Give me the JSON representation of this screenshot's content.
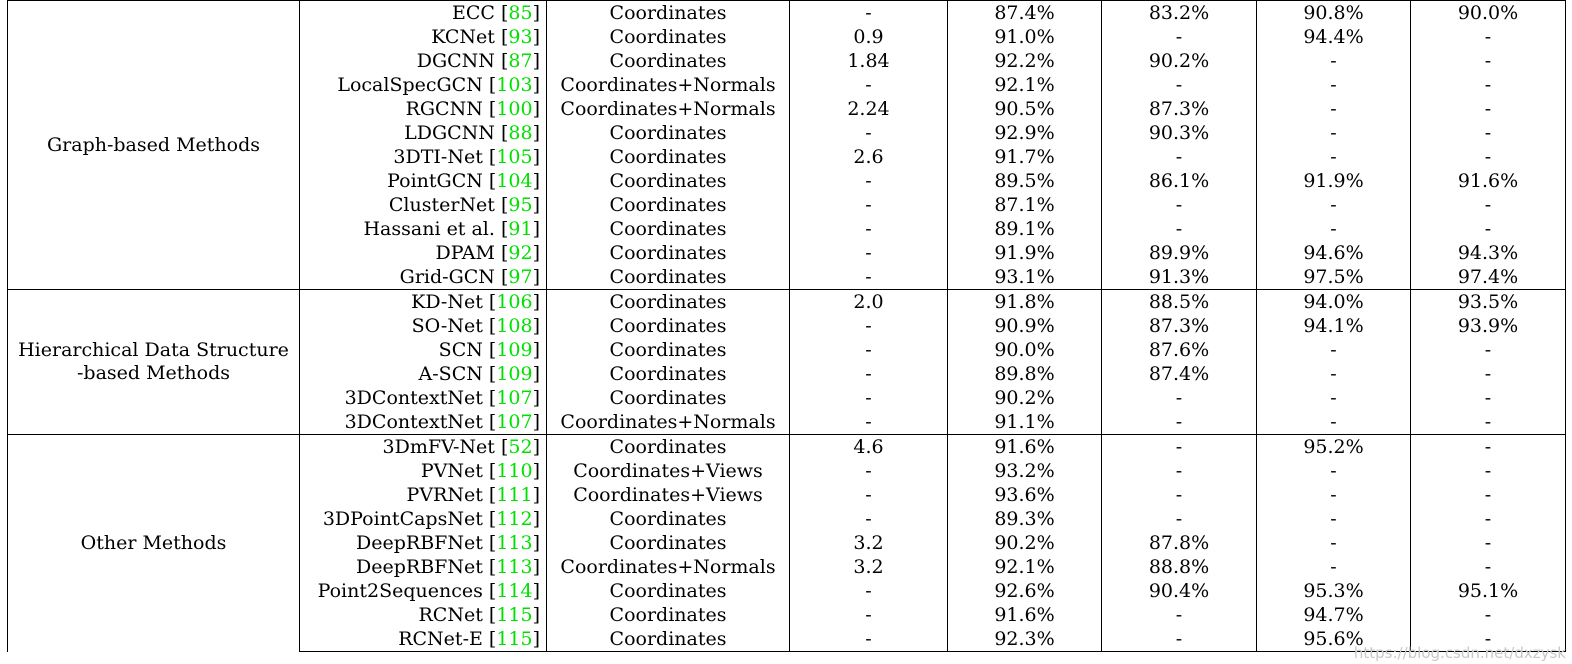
{
  "groups": [
    {
      "label": "Graph-based Methods",
      "rows": [
        {
          "method": "ECC",
          "ref": "85",
          "input": "Coordinates",
          "params": "-",
          "oa_mn40": "87.4%",
          "macc_mn40": "83.2%",
          "oa_mn10": "90.8%",
          "macc_mn10": "90.0%"
        },
        {
          "method": "KCNet",
          "ref": "93",
          "input": "Coordinates",
          "params": "0.9",
          "oa_mn40": "91.0%",
          "macc_mn40": "-",
          "oa_mn10": "94.4%",
          "macc_mn10": "-"
        },
        {
          "method": "DGCNN",
          "ref": "87",
          "input": "Coordinates",
          "params": "1.84",
          "oa_mn40": "92.2%",
          "macc_mn40": "90.2%",
          "oa_mn10": "-",
          "macc_mn10": "-"
        },
        {
          "method": "LocalSpecGCN",
          "ref": "103",
          "input": "Coordinates+Normals",
          "params": "-",
          "oa_mn40": "92.1%",
          "macc_mn40": "-",
          "oa_mn10": "-",
          "macc_mn10": "-"
        },
        {
          "method": "RGCNN",
          "ref": "100",
          "input": "Coordinates+Normals",
          "params": "2.24",
          "oa_mn40": "90.5%",
          "macc_mn40": "87.3%",
          "oa_mn10": "-",
          "macc_mn10": "-"
        },
        {
          "method": "LDGCNN",
          "ref": "88",
          "input": "Coordinates",
          "params": "-",
          "oa_mn40": "92.9%",
          "macc_mn40": "90.3%",
          "oa_mn10": "-",
          "macc_mn10": "-"
        },
        {
          "method": "3DTI-Net",
          "ref": "105",
          "input": "Coordinates",
          "params": "2.6",
          "oa_mn40": "91.7%",
          "macc_mn40": "-",
          "oa_mn10": "-",
          "macc_mn10": "-"
        },
        {
          "method": "PointGCN",
          "ref": "104",
          "input": "Coordinates",
          "params": "-",
          "oa_mn40": "89.5%",
          "macc_mn40": "86.1%",
          "oa_mn10": "91.9%",
          "macc_mn10": "91.6%"
        },
        {
          "method": "ClusterNet",
          "ref": "95",
          "input": "Coordinates",
          "params": "-",
          "oa_mn40": "87.1%",
          "macc_mn40": "-",
          "oa_mn10": "-",
          "macc_mn10": "-"
        },
        {
          "method": "Hassani et al.",
          "ref": "91",
          "input": "Coordinates",
          "params": "-",
          "oa_mn40": "89.1%",
          "macc_mn40": "-",
          "oa_mn10": "-",
          "macc_mn10": "-"
        },
        {
          "method": "DPAM",
          "ref": "92",
          "input": "Coordinates",
          "params": "-",
          "oa_mn40": "91.9%",
          "macc_mn40": "89.9%",
          "oa_mn10": "94.6%",
          "macc_mn10": "94.3%"
        },
        {
          "method": "Grid-GCN",
          "ref": "97",
          "input": "Coordinates",
          "params": "-",
          "oa_mn40": "93.1%",
          "macc_mn40": "91.3%",
          "oa_mn10": "97.5%",
          "macc_mn10": "97.4%"
        }
      ]
    },
    {
      "label": "Hierarchical Data Structure -based Methods",
      "rows": [
        {
          "method": "KD-Net",
          "ref": "106",
          "input": "Coordinates",
          "params": "2.0",
          "oa_mn40": "91.8%",
          "macc_mn40": "88.5%",
          "oa_mn10": "94.0%",
          "macc_mn10": "93.5%"
        },
        {
          "method": "SO-Net",
          "ref": "108",
          "input": "Coordinates",
          "params": "-",
          "oa_mn40": "90.9%",
          "macc_mn40": "87.3%",
          "oa_mn10": "94.1%",
          "macc_mn10": "93.9%"
        },
        {
          "method": "SCN",
          "ref": "109",
          "input": "Coordinates",
          "params": "-",
          "oa_mn40": "90.0%",
          "macc_mn40": "87.6%",
          "oa_mn10": "-",
          "macc_mn10": "-"
        },
        {
          "method": "A-SCN",
          "ref": "109",
          "input": "Coordinates",
          "params": "-",
          "oa_mn40": "89.8%",
          "macc_mn40": "87.4%",
          "oa_mn10": "-",
          "macc_mn10": "-"
        },
        {
          "method": "3DContextNet",
          "ref": "107",
          "input": "Coordinates",
          "params": "-",
          "oa_mn40": "90.2%",
          "macc_mn40": "-",
          "oa_mn10": "-",
          "macc_mn10": "-"
        },
        {
          "method": "3DContextNet",
          "ref": "107",
          "input": "Coordinates+Normals",
          "params": "-",
          "oa_mn40": "91.1%",
          "macc_mn40": "-",
          "oa_mn10": "-",
          "macc_mn10": "-"
        }
      ]
    },
    {
      "label": "Other Methods",
      "rows": [
        {
          "method": "3DmFV-Net",
          "ref": "52",
          "input": "Coordinates",
          "params": "4.6",
          "oa_mn40": "91.6%",
          "macc_mn40": "-",
          "oa_mn10": "95.2%",
          "macc_mn10": "-"
        },
        {
          "method": "PVNet",
          "ref": "110",
          "input": "Coordinates+Views",
          "params": "-",
          "oa_mn40": "93.2%",
          "macc_mn40": "-",
          "oa_mn10": "-",
          "macc_mn10": "-"
        },
        {
          "method": "PVRNet",
          "ref": "111",
          "input": "Coordinates+Views",
          "params": "-",
          "oa_mn40": "93.6%",
          "macc_mn40": "-",
          "oa_mn10": "-",
          "macc_mn10": "-"
        },
        {
          "method": "3DPointCapsNet",
          "ref": "112",
          "input": "Coordinates",
          "params": "-",
          "oa_mn40": "89.3%",
          "macc_mn40": "-",
          "oa_mn10": "-",
          "macc_mn10": "-"
        },
        {
          "method": "DeepRBFNet",
          "ref": "113",
          "input": "Coordinates",
          "params": "3.2",
          "oa_mn40": "90.2%",
          "macc_mn40": "87.8%",
          "oa_mn10": "-",
          "macc_mn10": "-"
        },
        {
          "method": "DeepRBFNet",
          "ref": "113",
          "input": "Coordinates+Normals",
          "params": "3.2",
          "oa_mn40": "92.1%",
          "macc_mn40": "88.8%",
          "oa_mn10": "-",
          "macc_mn10": "-"
        },
        {
          "method": "Point2Sequences",
          "ref": "114",
          "input": "Coordinates",
          "params": "-",
          "oa_mn40": "92.6%",
          "macc_mn40": "90.4%",
          "oa_mn10": "95.3%",
          "macc_mn10": "95.1%"
        },
        {
          "method": "RCNet",
          "ref": "115",
          "input": "Coordinates",
          "params": "-",
          "oa_mn40": "91.6%",
          "macc_mn40": "-",
          "oa_mn10": "94.7%",
          "macc_mn10": "-"
        },
        {
          "method": "RCNet-E",
          "ref": "115",
          "input": "Coordinates",
          "params": "-",
          "oa_mn40": "92.3%",
          "macc_mn40": "-",
          "oa_mn10": "95.6%",
          "macc_mn10": "-"
        }
      ]
    }
  ],
  "watermark": "https://blog.csdn.net/dxzysk",
  "colors": {
    "reference": "#00e000",
    "watermark": "#c8c8c8"
  }
}
